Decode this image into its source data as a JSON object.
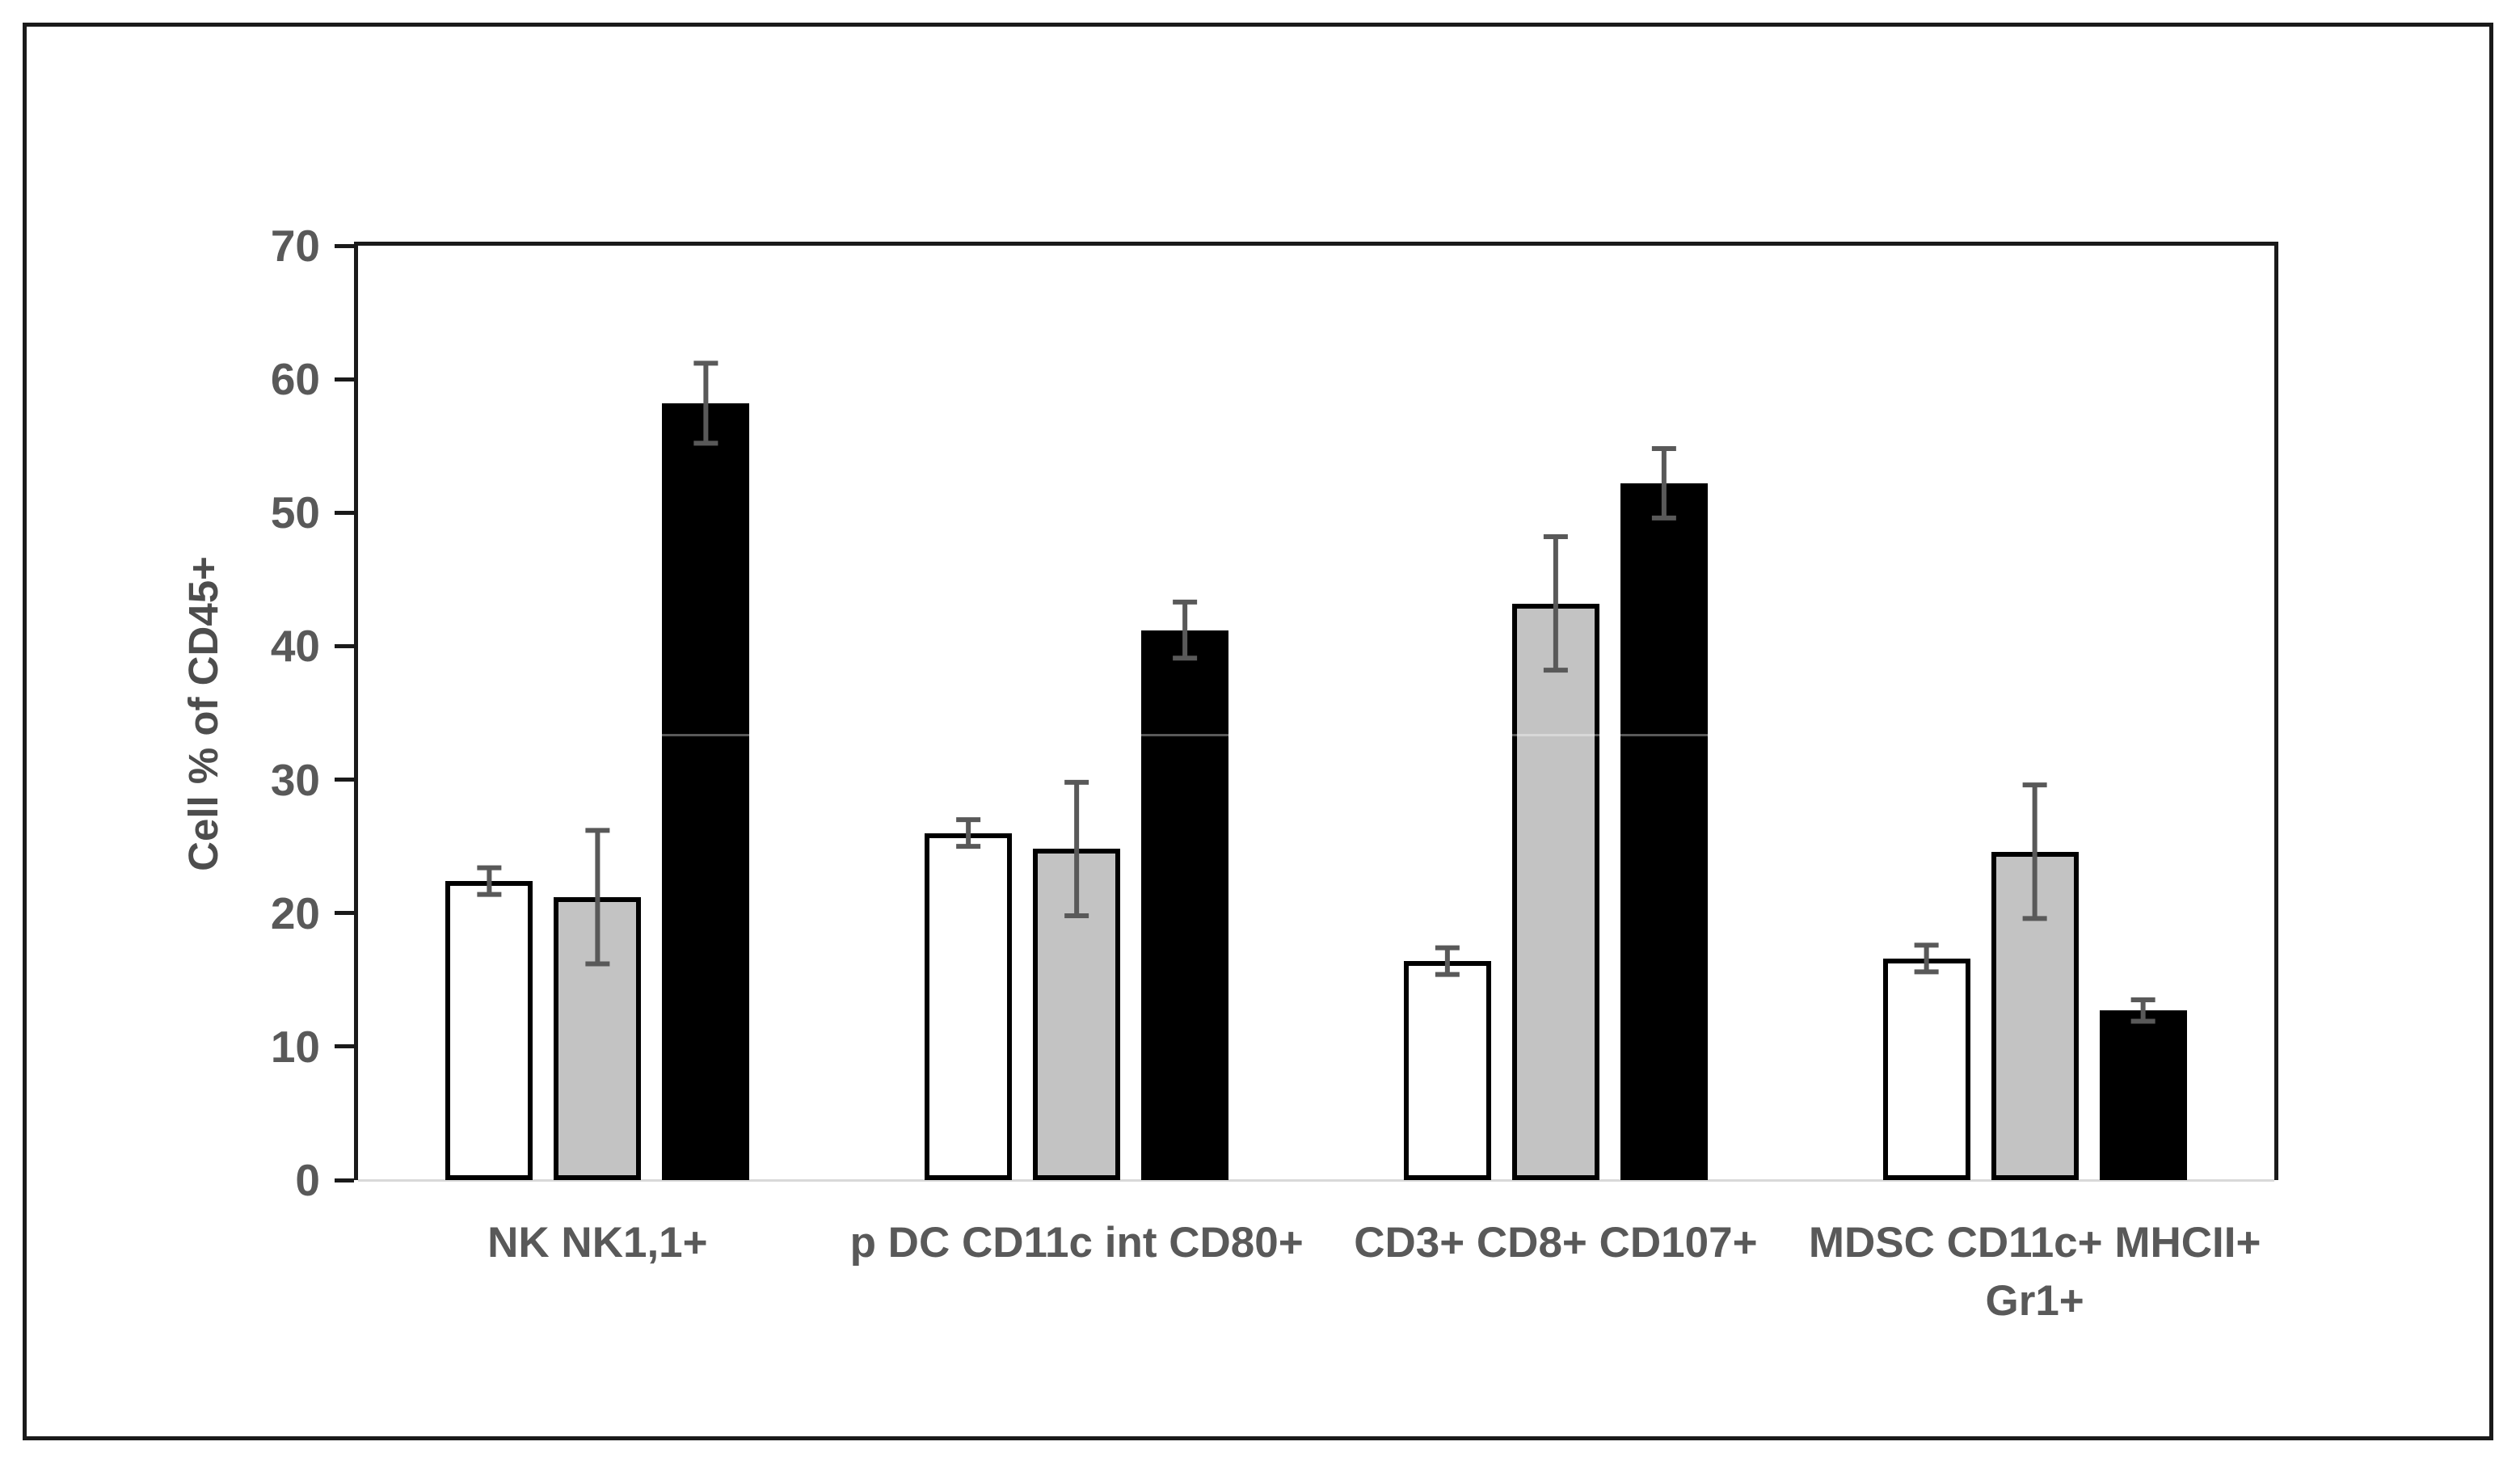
{
  "figure": {
    "border_color": "#1a1a1a",
    "background_color": "#ffffff"
  },
  "chart_data": {
    "type": "bar",
    "title": "",
    "xlabel": "",
    "ylabel": "Cell % of CD45+",
    "ylim": [
      0,
      70
    ],
    "yticks": [
      0,
      10,
      20,
      30,
      40,
      50,
      60,
      70
    ],
    "grid": "off",
    "legend": "none",
    "categories": [
      "NK NK1,1+",
      "p DC CD11c int CD80+",
      "CD3+ CD8+ CD107+",
      "MDSC CD11c+ MHCII+\nGr1+"
    ],
    "series": [
      {
        "name": "white-bars",
        "fill": "#ffffff",
        "outline": "#000000",
        "values": [
          22.4,
          26.0,
          16.4,
          16.6
        ],
        "errors": [
          1.0,
          1.0,
          1.0,
          1.0
        ]
      },
      {
        "name": "grey-bars",
        "fill": "#c3c3c3",
        "outline": "#000000",
        "values": [
          21.2,
          24.8,
          43.2,
          24.6
        ],
        "errors": [
          5.0,
          5.0,
          5.0,
          5.0
        ]
      },
      {
        "name": "black-bars",
        "fill": "#000000",
        "outline": "#000000",
        "values": [
          58.2,
          41.2,
          52.2,
          12.7
        ],
        "errors": [
          3.0,
          2.1,
          2.6,
          0.8
        ]
      }
    ],
    "error_bar_color": "#595959",
    "axis_color": "#1a1a1a",
    "baseline_color": "#d9d9d9",
    "tick_label_color": "#595959",
    "axis_title_color": "#4d4d4d",
    "faint_seam_line_at_value": 33.4
  }
}
